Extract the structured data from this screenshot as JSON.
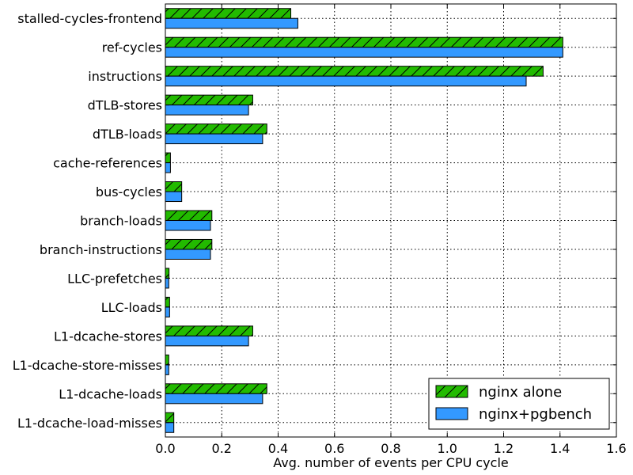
{
  "chart_data": {
    "type": "bar",
    "orientation": "horizontal",
    "categories": [
      "stalled-cycles-frontend",
      "ref-cycles",
      "instructions",
      "dTLB-stores",
      "dTLB-loads",
      "cache-references",
      "bus-cycles",
      "branch-loads",
      "branch-instructions",
      "LLC-prefetches",
      "LLC-loads",
      "L1-dcache-stores",
      "L1-dcache-store-misses",
      "L1-dcache-loads",
      "L1-dcache-load-misses"
    ],
    "series": [
      {
        "name": "nginx alone",
        "color": "#22bb00",
        "hatch": "diagonal",
        "values": [
          0.445,
          1.41,
          1.34,
          0.31,
          0.36,
          0.018,
          0.058,
          0.165,
          0.165,
          0.013,
          0.015,
          0.31,
          0.012,
          0.36,
          0.03
        ]
      },
      {
        "name": "nginx+pgbench",
        "color": "#3399ff",
        "values": [
          0.47,
          1.41,
          1.28,
          0.295,
          0.345,
          0.018,
          0.058,
          0.16,
          0.16,
          0.012,
          0.015,
          0.295,
          0.012,
          0.345,
          0.03
        ]
      }
    ],
    "xlabel": "Avg. number of events per CPU cycle",
    "xlim": [
      0,
      1.6
    ],
    "xticks": [
      "0.0",
      "0.2",
      "0.4",
      "0.6",
      "0.8",
      "1.0",
      "1.2",
      "1.4",
      "1.6"
    ],
    "grid": true,
    "grid_style": "dotted",
    "legend_position": "lower-right"
  }
}
